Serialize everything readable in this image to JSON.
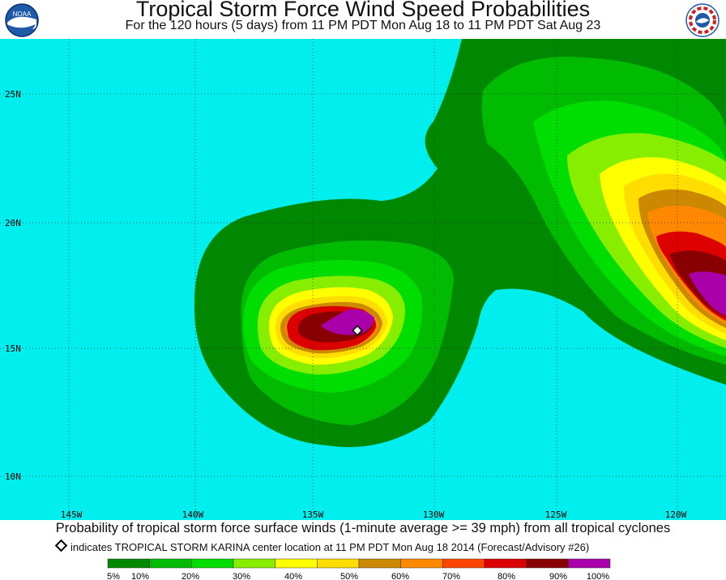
{
  "header": {
    "title": "Tropical Storm Force Wind Speed Probabilities",
    "subtitle": "For the 120 hours (5 days) from 11 PM PDT Mon Aug 18 to 11 PM PDT Sat Aug 23",
    "left_logo": {
      "text": "NOAA",
      "icon": "noaa-logo"
    },
    "right_logo": {
      "icon": "national-weather-service-logo"
    }
  },
  "map": {
    "ocean_color": "#00eeee",
    "lat_labels": [
      "25N",
      "20N",
      "15N",
      "10N"
    ],
    "lon_labels": [
      "145W",
      "140W",
      "135W",
      "130W",
      "125W",
      "120W"
    ],
    "storm_center_marker": {
      "icon": "white-diamond"
    }
  },
  "footer": {
    "description": "Probability of tropical storm force surface winds (1-minute average >= 39 mph) from all tropical cyclones",
    "marker_note": "indicates TROPICAL STORM KARINA center location at 11 PM PDT Mon Aug 18 2014 (Forecast/Advisory #26)"
  },
  "legend": {
    "colors": [
      "#008800",
      "#00bb00",
      "#00dd00",
      "#88ee00",
      "#ffff00",
      "#ffdd00",
      "#cc8800",
      "#ff8800",
      "#ff4400",
      "#dd0000",
      "#880000",
      "#aa00aa"
    ],
    "labels": [
      "5%",
      "10%",
      "20%",
      "30%",
      "40%",
      "50%",
      "60%",
      "70%",
      "80%",
      "90%",
      "100%"
    ]
  }
}
